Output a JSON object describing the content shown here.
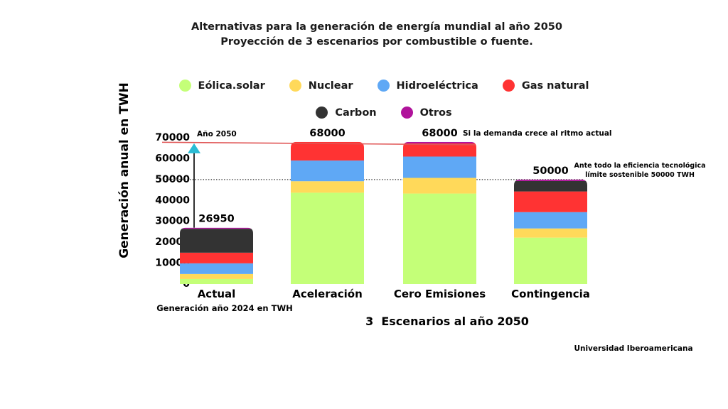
{
  "chart_data": {
    "type": "bar",
    "stacked": true,
    "title": "Alternativas para la generación de energía mundial al año 2050",
    "subtitle": "Proyección de 3 escenarios por combustible o fuente.",
    "xlabel": "3  Escenarios al año 2050",
    "ylabel": "Generación anual  en TWH",
    "ylim": [
      0,
      70000
    ],
    "yticks": [
      0,
      10000,
      20000,
      30000,
      40000,
      50000,
      60000,
      70000
    ],
    "ytick_labels": [
      "0",
      "10000",
      "20000",
      "30000",
      "40000",
      "50000",
      "60000",
      "70000"
    ],
    "grid": false,
    "legend_position": "top-center",
    "categories": [
      "Actual",
      "Aceleración",
      "Cero Emisiones",
      "Contingencia"
    ],
    "category_sublabels": [
      "Generación año 2024 en TWH",
      "",
      "",
      ""
    ],
    "totals": [
      26950,
      68000,
      68000,
      50000
    ],
    "total_labels": [
      "26950",
      "68000",
      "68000",
      "50000"
    ],
    "series": [
      {
        "name": "Eólica.solar",
        "color": "#c4ff78",
        "values": [
          2400,
          43700,
          43300,
          22200
        ]
      },
      {
        "name": "Nuclear",
        "color": "#ffd95a",
        "values": [
          2400,
          5500,
          7500,
          4400
        ]
      },
      {
        "name": "Hidroeléctrica",
        "color": "#5fa8f5",
        "values": [
          5100,
          9900,
          10200,
          7800
        ]
      },
      {
        "name": "Gas natural",
        "color": "#ff3333",
        "values": [
          5100,
          8900,
          6300,
          9900
        ]
      },
      {
        "name": "Carbon",
        "color": "#333333",
        "values": [
          11450,
          0,
          0,
          5000
        ]
      },
      {
        "name": "Otros",
        "color": "#b0139b",
        "values": [
          500,
          0,
          700,
          700
        ]
      }
    ],
    "reference_lines": [
      {
        "name": "demand-trend-line",
        "value": 68000,
        "style": "solid",
        "color": "#e05555",
        "label": "Si la demanda crece al ritmo actual"
      },
      {
        "name": "sustainable-limit-line",
        "value": 50000,
        "style": "dotted",
        "color": "#333333",
        "label_line1": "Ante todo la eficiencia tecnológica",
        "label_line2": "límite sostenible 50000 TWH"
      }
    ],
    "arrow": {
      "from_value": 26950,
      "to_value": 68000,
      "category": "Actual",
      "label": "Año 2050",
      "head_color": "#2bbcd4"
    }
  },
  "credit": "Universidad Iberoamericana"
}
